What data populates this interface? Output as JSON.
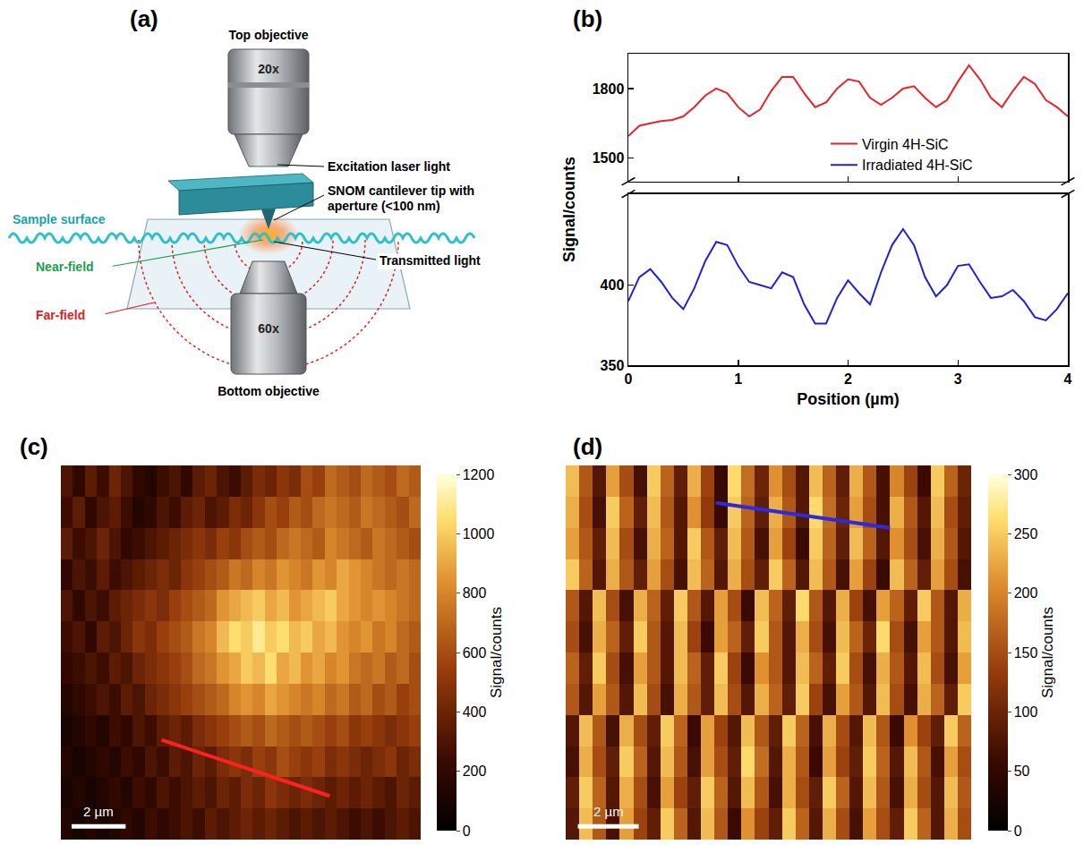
{
  "chart_data": [
    {
      "label": "(b)",
      "type": "line",
      "x": [
        0,
        0.1,
        0.2,
        0.3,
        0.4,
        0.5,
        0.6,
        0.7,
        0.8,
        0.9,
        1.0,
        1.1,
        1.2,
        1.3,
        1.4,
        1.5,
        1.6,
        1.7,
        1.8,
        1.9,
        2.0,
        2.1,
        2.2,
        2.3,
        2.4,
        2.5,
        2.6,
        2.7,
        2.8,
        2.9,
        3.0,
        3.1,
        3.2,
        3.3,
        3.4,
        3.5,
        3.6,
        3.7,
        3.8,
        3.9,
        4.0
      ],
      "x_label": "Position (µm)",
      "y_label": "Signal/counts",
      "xlim": [
        0,
        4
      ],
      "xticks": [
        0,
        1,
        2,
        3,
        4
      ],
      "ylim": [
        350,
        457
      ],
      "yticks": [
        350,
        400
      ],
      "y2lim": [
        1400,
        1950
      ],
      "y2ticks": [
        1500,
        1800
      ],
      "grid": false,
      "legend": "right",
      "series": [
        {
          "name": "Virgin 4H-SiC",
          "color": "#e8232a",
          "axis": "y2",
          "values": [
            1595,
            1640,
            1650,
            1660,
            1665,
            1680,
            1720,
            1770,
            1800,
            1780,
            1720,
            1680,
            1710,
            1790,
            1850,
            1850,
            1780,
            1720,
            1740,
            1800,
            1840,
            1830,
            1760,
            1730,
            1760,
            1800,
            1810,
            1760,
            1720,
            1750,
            1830,
            1900,
            1840,
            1760,
            1720,
            1790,
            1850,
            1820,
            1750,
            1720,
            1680
          ]
        },
        {
          "name": "Irradiated 4H-SiC",
          "color": "#2020d8",
          "values": [
            390,
            405,
            410,
            402,
            392,
            385,
            398,
            415,
            427,
            425,
            412,
            402,
            400,
            398,
            408,
            405,
            388,
            376,
            376,
            392,
            403,
            395,
            388,
            408,
            425,
            435,
            425,
            405,
            393,
            400,
            412,
            413,
            402,
            392,
            393,
            397,
            390,
            380,
            378,
            385,
            395
          ]
        }
      ]
    },
    {
      "label": "(c)",
      "type": "heatmap",
      "tick_labels": false,
      "zlim": [
        0,
        1200
      ],
      "zticks": [
        0,
        200,
        400,
        600,
        800,
        1000,
        1200
      ],
      "colorbar_title": "Signal/counts",
      "scale_bar": "2 µm",
      "profile": {
        "x": [
          7.9,
          21.9
        ],
        "y": [
          8.3,
          10.1
        ],
        "color": "#ff2020"
      },
      "z": [
        [
          300,
          200,
          350,
          250,
          400,
          300,
          200,
          150,
          250,
          300,
          200,
          350,
          400,
          300,
          250,
          350,
          450,
          400,
          500,
          450,
          600,
          550,
          700,
          650,
          600,
          700,
          650,
          600,
          700,
          650
        ],
        [
          250,
          350,
          200,
          300,
          350,
          250,
          150,
          200,
          300,
          250,
          350,
          400,
          300,
          350,
          450,
          400,
          500,
          600,
          550,
          650,
          600,
          700,
          750,
          700,
          650,
          750,
          700,
          650,
          600,
          700
        ],
        [
          350,
          250,
          300,
          400,
          300,
          200,
          250,
          300,
          350,
          400,
          450,
          500,
          450,
          550,
          500,
          600,
          650,
          600,
          700,
          750,
          700,
          650,
          800,
          750,
          700,
          650,
          750,
          700,
          650,
          600
        ],
        [
          200,
          300,
          250,
          350,
          250,
          300,
          350,
          400,
          450,
          400,
          500,
          550,
          600,
          650,
          750,
          700,
          800,
          750,
          850,
          800,
          750,
          850,
          800,
          900,
          850,
          800,
          750,
          700,
          750,
          700
        ],
        [
          300,
          200,
          300,
          250,
          350,
          400,
          450,
          500,
          450,
          550,
          600,
          650,
          700,
          850,
          900,
          950,
          1000,
          900,
          950,
          850,
          900,
          950,
          1000,
          900,
          850,
          800,
          850,
          800,
          750,
          700
        ],
        [
          250,
          300,
          200,
          350,
          300,
          400,
          500,
          450,
          550,
          600,
          650,
          750,
          800,
          950,
          1050,
          1000,
          1100,
          1000,
          1050,
          950,
          1000,
          900,
          950,
          850,
          800,
          850,
          750,
          800,
          700,
          650
        ],
        [
          200,
          250,
          300,
          250,
          350,
          300,
          400,
          450,
          500,
          550,
          600,
          700,
          750,
          850,
          900,
          1000,
          950,
          1050,
          900,
          950,
          850,
          900,
          800,
          850,
          750,
          700,
          750,
          650,
          700,
          600
        ],
        [
          150,
          200,
          250,
          300,
          250,
          350,
          300,
          400,
          450,
          500,
          550,
          600,
          650,
          700,
          800,
          850,
          800,
          900,
          850,
          800,
          750,
          800,
          700,
          750,
          650,
          700,
          600,
          650,
          550,
          600
        ],
        [
          100,
          150,
          200,
          150,
          250,
          200,
          300,
          250,
          350,
          400,
          350,
          450,
          500,
          550,
          600,
          650,
          600,
          700,
          650,
          600,
          650,
          600,
          550,
          600,
          500,
          550,
          500,
          450,
          500,
          550
        ],
        [
          150,
          100,
          150,
          200,
          150,
          250,
          200,
          300,
          250,
          350,
          300,
          400,
          350,
          450,
          500,
          450,
          550,
          500,
          600,
          550,
          500,
          550,
          450,
          500,
          450,
          400,
          450,
          500,
          400,
          450
        ],
        [
          100,
          150,
          100,
          150,
          200,
          150,
          250,
          200,
          300,
          250,
          300,
          350,
          300,
          400,
          350,
          450,
          400,
          500,
          450,
          400,
          450,
          400,
          350,
          400,
          350,
          400,
          350,
          300,
          400,
          350
        ],
        [
          150,
          100,
          150,
          100,
          150,
          200,
          150,
          250,
          200,
          250,
          300,
          250,
          350,
          300,
          350,
          400,
          350,
          400,
          350,
          300,
          350,
          300,
          350,
          300,
          250,
          300,
          250,
          300,
          350,
          300
        ]
      ]
    },
    {
      "label": "(d)",
      "type": "heatmap",
      "tick_labels": false,
      "zlim": [
        0,
        300
      ],
      "zticks": [
        0,
        50,
        100,
        150,
        200,
        250,
        300
      ],
      "colorbar_title": "Signal/counts",
      "scale_bar": "2 µm",
      "profile": {
        "x": [
          10.6,
          23.5
        ],
        "y": [
          0.7,
          1.5
        ],
        "color": "#2a2ae0"
      },
      "z": [
        [
          240,
          160,
          80,
          220,
          150,
          70,
          250,
          170,
          90,
          230,
          140,
          60,
          260,
          180,
          100,
          210,
          150,
          80,
          240,
          170,
          90,
          230,
          160,
          70,
          200,
          140,
          60,
          250,
          170,
          100
        ],
        [
          230,
          150,
          70,
          250,
          170,
          90,
          240,
          160,
          80,
          210,
          130,
          60,
          250,
          170,
          90,
          230,
          160,
          80,
          260,
          180,
          100,
          220,
          150,
          70,
          230,
          160,
          80,
          240,
          150,
          90
        ],
        [
          220,
          160,
          90,
          240,
          150,
          70,
          230,
          170,
          80,
          250,
          160,
          90,
          240,
          160,
          70,
          220,
          140,
          60,
          250,
          170,
          90,
          240,
          170,
          80,
          210,
          150,
          70,
          230,
          160,
          80
        ],
        [
          250,
          170,
          80,
          230,
          160,
          90,
          220,
          150,
          70,
          240,
          170,
          80,
          230,
          150,
          90,
          250,
          170,
          80,
          240,
          160,
          70,
          220,
          140,
          60,
          240,
          170,
          90,
          220,
          150,
          70
        ],
        [
          160,
          80,
          240,
          150,
          70,
          230,
          170,
          90,
          250,
          160,
          80,
          220,
          150,
          60,
          240,
          170,
          90,
          260,
          160,
          80,
          230,
          140,
          70,
          220,
          170,
          90,
          250,
          160,
          80,
          230
        ],
        [
          150,
          70,
          230,
          170,
          90,
          250,
          160,
          80,
          240,
          140,
          60,
          220,
          170,
          90,
          250,
          160,
          80,
          230,
          150,
          70,
          240,
          170,
          100,
          260,
          150,
          70,
          220,
          160,
          80,
          240
        ],
        [
          170,
          90,
          250,
          150,
          70,
          220,
          160,
          80,
          240,
          170,
          90,
          250,
          140,
          60,
          210,
          160,
          80,
          240,
          170,
          90,
          250,
          150,
          70,
          230,
          160,
          80,
          240,
          150,
          70,
          220
        ],
        [
          160,
          80,
          220,
          160,
          80,
          240,
          150,
          70,
          230,
          160,
          90,
          240,
          150,
          80,
          230,
          170,
          90,
          250,
          140,
          70,
          220,
          160,
          80,
          240,
          150,
          70,
          230,
          170,
          90,
          250
        ],
        [
          80,
          240,
          160,
          70,
          230,
          150,
          90,
          250,
          170,
          60,
          220,
          140,
          80,
          240,
          160,
          90,
          250,
          170,
          70,
          230,
          150,
          80,
          240,
          160,
          60,
          210,
          140,
          90,
          250,
          170
        ],
        [
          70,
          230,
          150,
          90,
          250,
          170,
          80,
          240,
          160,
          70,
          220,
          150,
          90,
          260,
          180,
          80,
          230,
          160,
          60,
          220,
          140,
          90,
          250,
          170,
          80,
          240,
          160,
          70,
          220,
          150
        ],
        [
          90,
          250,
          170,
          80,
          230,
          150,
          70,
          220,
          140,
          90,
          250,
          170,
          80,
          240,
          160,
          70,
          230,
          150,
          90,
          250,
          170,
          80,
          240,
          160,
          70,
          230,
          150,
          80,
          240,
          160
        ],
        [
          80,
          240,
          160,
          70,
          220,
          140,
          90,
          250,
          170,
          80,
          240,
          160,
          60,
          210,
          140,
          90,
          250,
          170,
          80,
          230,
          150,
          70,
          220,
          150,
          90,
          250,
          170,
          80,
          230,
          150
        ]
      ]
    }
  ],
  "diagram": {
    "label": "(a)",
    "top_objective": "Top objective",
    "top_magnification": "20x",
    "excitation": "Excitation laser light",
    "tip": "SNOM cantilever tip with aperture (<100 nm)",
    "sample_surface": "Sample surface",
    "near_field": "Near-field",
    "transmitted": "Transmitted light",
    "far_field": "Far-field",
    "bottom_magnification": "60x",
    "bottom_objective": "Bottom objective"
  }
}
